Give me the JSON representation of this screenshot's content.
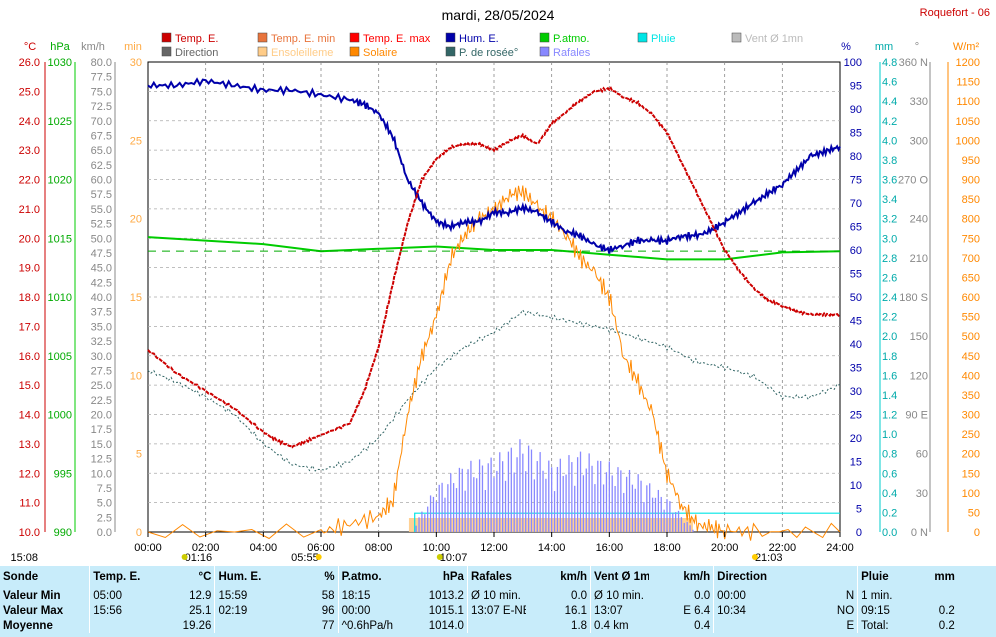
{
  "header": {
    "title": "mardi, 28/05/2024",
    "station": "Roquefort - 06"
  },
  "legend": [
    {
      "label": "Temp. E.",
      "color": "#cc0000"
    },
    {
      "label": "Temp. E. min",
      "color": "#e8743c"
    },
    {
      "label": "Temp. E. max",
      "color": "#ff0000"
    },
    {
      "label": "Hum. E.",
      "color": "#0000aa"
    },
    {
      "label": "P.atmo.",
      "color": "#00cc00"
    },
    {
      "label": "Pluie",
      "color": "#00e5e5"
    },
    {
      "label": "Vent Ø 1mn",
      "color": "#bbbbbb"
    },
    {
      "label": "Direction",
      "color": "#666666"
    },
    {
      "label": "Ensoleilleme",
      "color": "#ffcc88"
    },
    {
      "label": "Solaire",
      "color": "#ff8800"
    },
    {
      "label": "P. de rosée°",
      "color": "#336666"
    },
    {
      "label": "Rafales",
      "color": "#8888ff"
    }
  ],
  "axes": {
    "units_left": [
      "°C",
      "hPa",
      "km/h",
      "min"
    ],
    "units_right": [
      "%",
      "mm",
      "°",
      "W/m²"
    ],
    "temp": [
      "26.0",
      "25.0",
      "24.0",
      "23.0",
      "22.0",
      "21.0",
      "20.0",
      "19.0",
      "18.0",
      "17.0",
      "16.0",
      "15.0",
      "14.0",
      "13.0",
      "12.0",
      "11.0",
      "10.0"
    ],
    "press": [
      "1030",
      "1025",
      "1020",
      "1015",
      "1010",
      "1005",
      "1000",
      "995",
      "990"
    ],
    "wind": [
      "80.0",
      "77.5",
      "75.0",
      "72.5",
      "70.0",
      "67.5",
      "65.0",
      "62.5",
      "60.0",
      "57.5",
      "55.0",
      "52.5",
      "50.0",
      "47.5",
      "45.0",
      "42.5",
      "40.0",
      "37.5",
      "35.0",
      "32.5",
      "30.0",
      "27.5",
      "25.0",
      "22.5",
      "20.0",
      "17.5",
      "15.0",
      "12.5",
      "10.0",
      "7.5",
      "5.0",
      "2.5",
      "0.0"
    ],
    "minutes": [
      "30",
      "25",
      "20",
      "15",
      "10",
      "5",
      "0"
    ],
    "hum": [
      "100",
      "95",
      "90",
      "85",
      "80",
      "75",
      "70",
      "65",
      "60",
      "55",
      "50",
      "45",
      "40",
      "35",
      "30",
      "25",
      "20",
      "15",
      "10",
      "5",
      "0"
    ],
    "rain": [
      "4.8",
      "4.6",
      "4.4",
      "4.2",
      "4.0",
      "3.8",
      "3.6",
      "3.4",
      "3.2",
      "3.0",
      "2.8",
      "2.6",
      "2.4",
      "2.2",
      "2.0",
      "1.8",
      "1.6",
      "1.4",
      "1.2",
      "1.0",
      "0.8",
      "0.6",
      "0.4",
      "0.2",
      "0.0"
    ],
    "dir": [
      "360 N",
      "330",
      "300",
      "270 O",
      "240",
      "210",
      "180 S",
      "150",
      "120",
      "90 E",
      "60",
      "30",
      "0 N"
    ],
    "solar": [
      "1200",
      "1150",
      "1100",
      "1050",
      "1000",
      "950",
      "900",
      "850",
      "800",
      "750",
      "700",
      "650",
      "600",
      "550",
      "500",
      "450",
      "400",
      "350",
      "300",
      "250",
      "200",
      "150",
      "100",
      "50",
      "0"
    ],
    "x_ticks": [
      "00:00",
      "02:00",
      "04:00",
      "06:00",
      "08:00",
      "10:00",
      "12:00",
      "14:00",
      "16:00",
      "18:00",
      "20:00",
      "22:00",
      "24:00"
    ],
    "markers": [
      "15:08",
      "01:16",
      "05:55",
      "10:07",
      "21:03"
    ]
  },
  "chart_data": {
    "type": "line",
    "title": "mardi, 28/05/2024",
    "x_unit": "hours",
    "series": [
      {
        "name": "Temp. E.",
        "unit": "°C",
        "x": [
          0,
          1,
          2,
          3,
          4,
          4.5,
          5,
          5.5,
          6,
          7,
          7.5,
          8,
          8.5,
          9,
          9.5,
          10,
          10.5,
          11,
          11.5,
          12,
          12.5,
          13,
          13.5,
          14,
          14.5,
          15,
          15.5,
          16,
          16.5,
          17,
          17.5,
          18,
          18.5,
          19,
          19.5,
          20,
          20.5,
          21,
          21.5,
          22,
          22.5,
          23,
          23.5,
          24
        ],
        "y": [
          16.2,
          15.4,
          14.8,
          14.2,
          13.4,
          13.1,
          12.9,
          13.1,
          13.3,
          13.7,
          14.8,
          16.3,
          18.5,
          20.5,
          22.0,
          22.7,
          23.1,
          23.2,
          23.2,
          23.0,
          23.3,
          23.5,
          23.2,
          23.9,
          24.3,
          24.7,
          25.0,
          25.1,
          24.8,
          24.6,
          24.2,
          23.6,
          22.6,
          21.6,
          20.6,
          19.6,
          18.9,
          18.3,
          17.9,
          17.7,
          17.5,
          17.4,
          17.4,
          17.4
        ]
      },
      {
        "name": "Hum. E.",
        "unit": "%",
        "x": [
          0,
          1,
          2,
          3,
          4,
          5,
          6,
          7,
          7.5,
          8,
          8.5,
          9,
          9.5,
          10,
          10.5,
          11,
          11.5,
          12,
          12.5,
          13,
          13.5,
          14,
          14.5,
          15,
          15.5,
          16,
          16.5,
          17,
          17.5,
          18,
          18.5,
          19,
          19.5,
          20,
          20.5,
          21,
          21.5,
          22,
          22.5,
          23,
          23.5,
          24
        ],
        "y": [
          95,
          95,
          96,
          95,
          94,
          94,
          93,
          92,
          91,
          89,
          84,
          75,
          70,
          66,
          65,
          66,
          66,
          68,
          68,
          69,
          68,
          66,
          64,
          63,
          61,
          60,
          61,
          62,
          62,
          62,
          63,
          63,
          64,
          66,
          68,
          70,
          72,
          74,
          77,
          80,
          81,
          82
        ]
      },
      {
        "name": "P.atmo.",
        "unit": "hPa",
        "x": [
          0,
          2,
          4,
          6,
          8,
          10,
          12,
          14,
          16,
          18,
          20,
          22,
          24
        ],
        "y": [
          1015.1,
          1014.8,
          1014.5,
          1013.9,
          1014.1,
          1014.3,
          1014.0,
          1014.0,
          1013.6,
          1013.2,
          1013.2,
          1013.8,
          1013.9
        ]
      },
      {
        "name": "P. de rosée°",
        "unit": "°C",
        "x": [
          0,
          1,
          2,
          3,
          4,
          5,
          6,
          7,
          8,
          9,
          10,
          11,
          12,
          13,
          14,
          15,
          16,
          17,
          18,
          19,
          20,
          21,
          22,
          23,
          24
        ],
        "y": [
          15.5,
          15.1,
          14.6,
          14.0,
          13.0,
          12.3,
          12.1,
          12.4,
          13.2,
          14.5,
          15.6,
          16.3,
          16.8,
          17.5,
          17.3,
          17.1,
          16.9,
          16.6,
          16.3,
          15.8,
          15.6,
          15.3,
          14.6,
          14.6,
          15.0
        ]
      },
      {
        "name": "Solaire",
        "unit": "W/m²",
        "x": [
          0,
          6,
          7,
          8,
          8.5,
          9,
          9.5,
          10,
          10.5,
          11,
          11.5,
          12,
          12.5,
          13,
          13.5,
          14,
          14.5,
          15,
          15.5,
          16,
          16.5,
          17,
          17.5,
          18,
          18.5,
          19,
          19.5,
          20,
          21,
          24
        ],
        "y": [
          0,
          0,
          20,
          40,
          80,
          300,
          450,
          550,
          700,
          760,
          800,
          820,
          860,
          870,
          830,
          800,
          760,
          700,
          660,
          600,
          450,
          380,
          300,
          150,
          70,
          20,
          10,
          5,
          0,
          0
        ]
      },
      {
        "name": "Rafales",
        "unit": "km/h",
        "x": [
          9.3,
          10,
          11,
          12,
          13,
          14,
          15,
          16,
          17,
          18,
          18.5,
          19
        ],
        "y": [
          1.8,
          8,
          12,
          13,
          16.1,
          12,
          14,
          12,
          10,
          6,
          3,
          0
        ]
      },
      {
        "name": "Pluie",
        "unit": "mm",
        "x": [
          0,
          9.25,
          24
        ],
        "y": [
          0,
          0.2,
          0.2
        ]
      }
    ],
    "xlim": [
      0,
      24
    ],
    "ylims": {
      "temp": [
        10,
        26
      ],
      "hum": [
        0,
        100
      ],
      "press": [
        990,
        1030
      ],
      "solar": [
        0,
        1200
      ],
      "wind": [
        0,
        80
      ],
      "rain": [
        0,
        5
      ]
    },
    "grid": true
  },
  "stats": {
    "columns": [
      {
        "title": "Sonde",
        "unit": ""
      },
      {
        "title": "Temp. E.",
        "unit": "°C"
      },
      {
        "title": "Hum. E.",
        "unit": "%"
      },
      {
        "title": "P.atmo.",
        "unit": "hPa"
      },
      {
        "title": "Rafales",
        "unit": "km/h"
      },
      {
        "title": "Vent Ø 1mn",
        "unit": "km/h"
      },
      {
        "title": "Direction",
        "unit": ""
      },
      {
        "title": "Pluie",
        "unit": "mm"
      }
    ],
    "rows": [
      {
        "label": "Valeur Min",
        "cells": [
          [
            "05:00",
            "12.9"
          ],
          [
            "15:59",
            "58"
          ],
          [
            "18:15",
            "1013.2"
          ],
          [
            "Ø 10 min.",
            "0.0"
          ],
          [
            "Ø 10 min.",
            "0.0"
          ],
          [
            "00:00",
            "N"
          ],
          [
            "1 min.",
            ""
          ]
        ]
      },
      {
        "label": "Valeur Max",
        "cells": [
          [
            "15:56",
            "25.1"
          ],
          [
            "02:19",
            "96"
          ],
          [
            "00:00",
            "1015.1"
          ],
          [
            "13:07   E-NE",
            "16.1"
          ],
          [
            "13:07",
            "E  6.4"
          ],
          [
            "10:34",
            "NO"
          ],
          [
            "09:15",
            "0.2"
          ]
        ]
      },
      {
        "label": "Moyenne",
        "cells": [
          [
            "",
            "19.26"
          ],
          [
            "",
            "77"
          ],
          [
            "^0.6hPa/h",
            "1014.0"
          ],
          [
            "",
            "1.8"
          ],
          [
            "0.4 km",
            "0.4"
          ],
          [
            "",
            "E"
          ],
          [
            "Total:",
            "0.2"
          ]
        ]
      }
    ]
  }
}
